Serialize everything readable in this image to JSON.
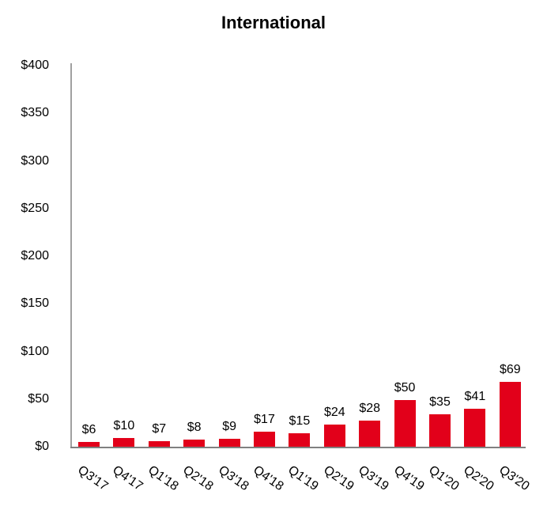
{
  "chart_data": {
    "type": "bar",
    "title": "International",
    "xlabel": "",
    "ylabel": "",
    "ylim": [
      0,
      400
    ],
    "yticks": [
      "$0",
      "$50",
      "$100",
      "$150",
      "$200",
      "$250",
      "$300",
      "$350",
      "$400"
    ],
    "grid": false,
    "legend": null,
    "bar_color": "#e2001a",
    "categories": [
      "Q3'17",
      "Q4'17",
      "Q1'18",
      "Q2'18",
      "Q3'18",
      "Q4'18",
      "Q1'19",
      "Q2'19",
      "Q3'19",
      "Q4'19",
      "Q1'20",
      "Q2'20",
      "Q3'20"
    ],
    "values": [
      6,
      10,
      7,
      8,
      9,
      17,
      15,
      24,
      28,
      50,
      35,
      41,
      69
    ],
    "data_labels": [
      "$6",
      "$10",
      "$7",
      "$8",
      "$9",
      "$17",
      "$15",
      "$24",
      "$28",
      "$50",
      "$35",
      "$41",
      "$69"
    ]
  }
}
